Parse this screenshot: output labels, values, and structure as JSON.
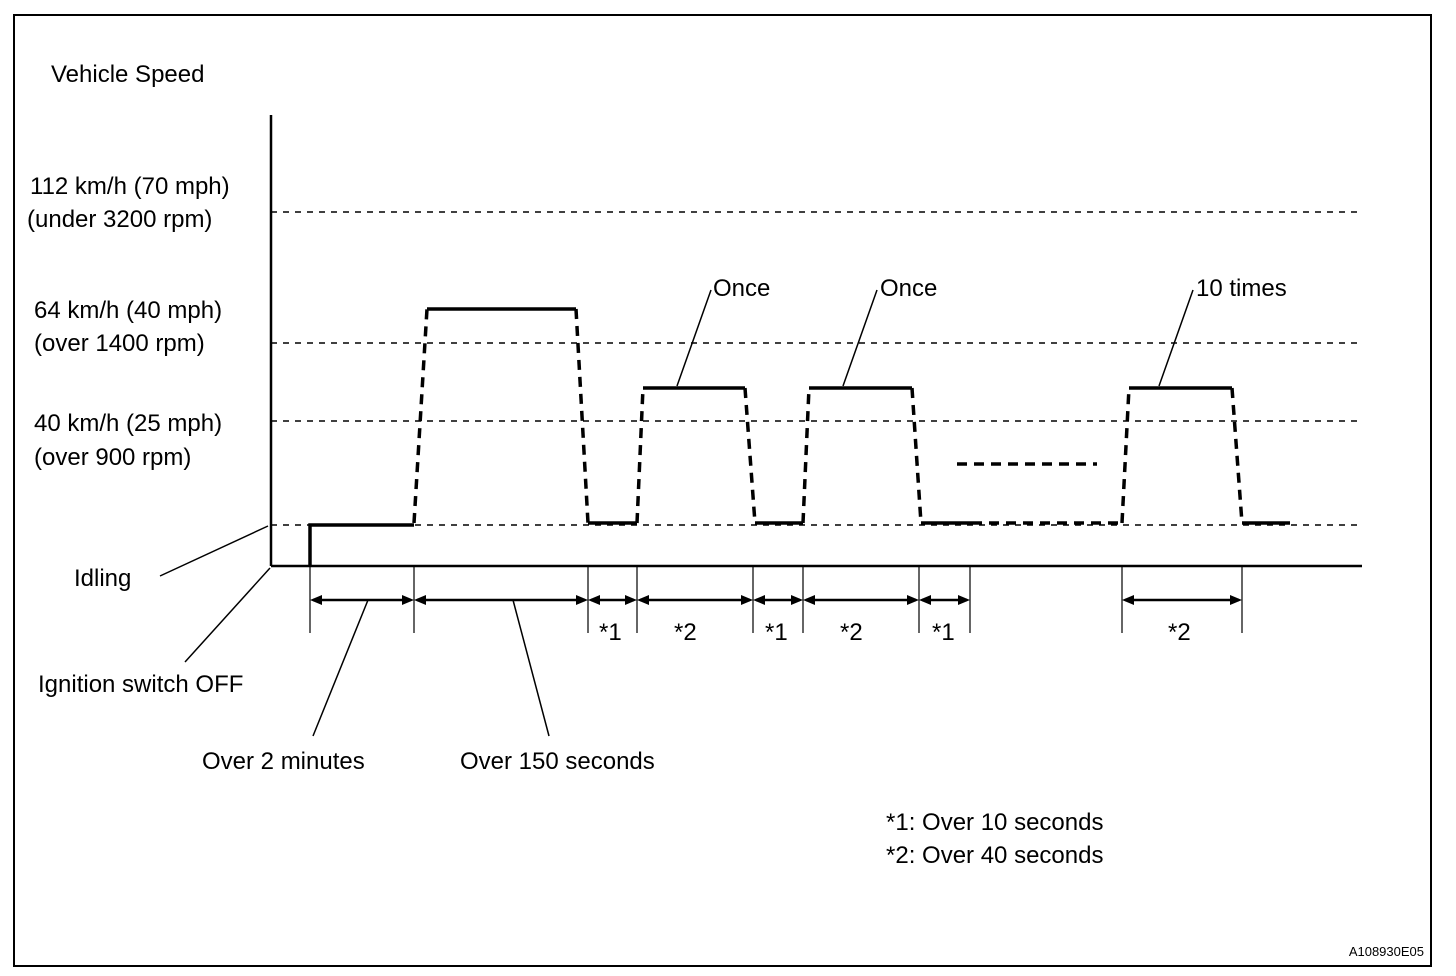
{
  "chart_title": "Vehicle Speed",
  "y_levels": [
    {
      "line1": "112 km/h (70 mph)",
      "line2": "(under 3200 rpm)"
    },
    {
      "line1": "64 km/h (40 mph)",
      "line2": "(over 1400 rpm)"
    },
    {
      "line1": "40 km/h (25 mph)",
      "line2": "(over 900 rpm)"
    }
  ],
  "idling_label": "Idling",
  "ignition_label": "Ignition switch OFF",
  "callouts": {
    "once_1": "Once",
    "once_2": "Once",
    "ten_times": "10 times"
  },
  "intervals": {
    "over_2_minutes": "Over 2 minutes",
    "over_150_seconds": "Over 150 seconds",
    "star1_a": "*1",
    "star2_a": "*2",
    "star1_b": "*1",
    "star2_b": "*2",
    "star1_c": "*1",
    "star2_c": "*2"
  },
  "legend": {
    "note1": "*1: Over 10 seconds",
    "note2": "*2: Over 40 seconds"
  },
  "figure_code": "A108930E05"
}
